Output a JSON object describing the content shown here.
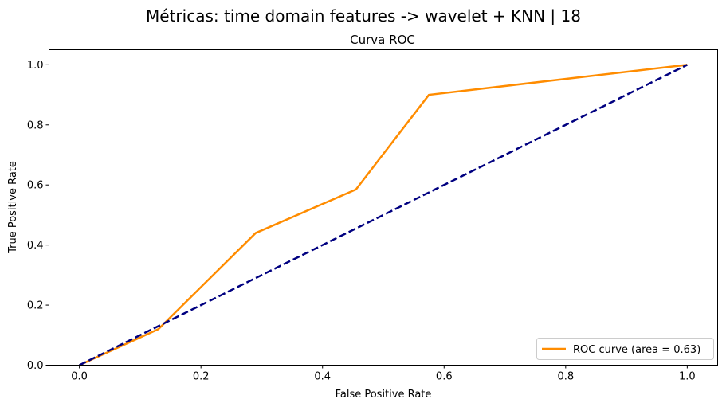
{
  "figure": {
    "suptitle": "Métricas: time domain features -> wavelet + KNN | 18"
  },
  "chart_data": {
    "type": "line",
    "title": "Curva ROC",
    "xlabel": "False Positive Rate",
    "ylabel": "True Positive Rate",
    "xlim": [
      -0.05,
      1.05
    ],
    "ylim": [
      0.0,
      1.05
    ],
    "xticks": [
      0.0,
      0.2,
      0.4,
      0.6,
      0.8,
      1.0
    ],
    "yticks": [
      0.0,
      0.2,
      0.4,
      0.6,
      0.8,
      1.0
    ],
    "xtick_labels": [
      "0.0",
      "0.2",
      "0.4",
      "0.6",
      "0.8",
      "1.0"
    ],
    "ytick_labels": [
      "0.0",
      "0.2",
      "0.4",
      "0.6",
      "0.8",
      "1.0"
    ],
    "grid": false,
    "legend_position": "lower-right",
    "series": [
      {
        "name": "ROC curve (area = 0.63)",
        "color": "#ff8c00",
        "style": "solid",
        "x": [
          0.0,
          0.13,
          0.29,
          0.455,
          0.575,
          1.0
        ],
        "y": [
          0.0,
          0.12,
          0.44,
          0.585,
          0.9,
          1.0
        ]
      },
      {
        "color": "#000080",
        "style": "dashed",
        "x": [
          0.0,
          1.0
        ],
        "y": [
          0.0,
          1.0
        ]
      }
    ]
  }
}
